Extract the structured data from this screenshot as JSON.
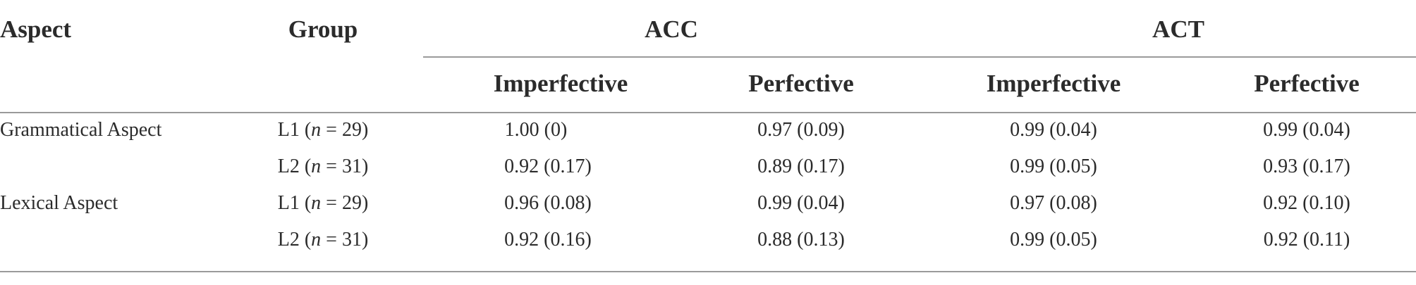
{
  "table": {
    "headers": {
      "aspect": "Aspect",
      "group": "Group",
      "acc": "ACC",
      "act": "ACT",
      "acc_imperfective": "Imperfective",
      "acc_perfective": "Perfective",
      "act_imperfective": "Imperfective",
      "act_perfective": "Perfective"
    },
    "rows": [
      {
        "aspect": "Grammatical Aspect",
        "group": {
          "label": "L1 (",
          "n": "n",
          "eq": " = 29)"
        },
        "acc_imperfective": "1.00 (0)",
        "acc_perfective": "0.97 (0.09)",
        "act_imperfective": "0.99 (0.04)",
        "act_perfective": "0.99 (0.04)"
      },
      {
        "aspect": "",
        "group": {
          "label": "L2 (",
          "n": "n",
          "eq": " = 31)"
        },
        "acc_imperfective": "0.92 (0.17)",
        "acc_perfective": "0.89 (0.17)",
        "act_imperfective": "0.99 (0.05)",
        "act_perfective": "0.93 (0.17)"
      },
      {
        "aspect": "Lexical Aspect",
        "group": {
          "label": "L1 (",
          "n": "n",
          "eq": " = 29)"
        },
        "acc_imperfective": "0.96 (0.08)",
        "acc_perfective": "0.99 (0.04)",
        "act_imperfective": "0.97 (0.08)",
        "act_perfective": "0.92 (0.10)"
      },
      {
        "aspect": "",
        "group": {
          "label": "L2 (",
          "n": "n",
          "eq": " = 31)"
        },
        "acc_imperfective": "0.92 (0.16)",
        "acc_perfective": "0.88 (0.13)",
        "act_imperfective": "0.99 (0.05)",
        "act_perfective": "0.92 (0.11)"
      }
    ]
  }
}
